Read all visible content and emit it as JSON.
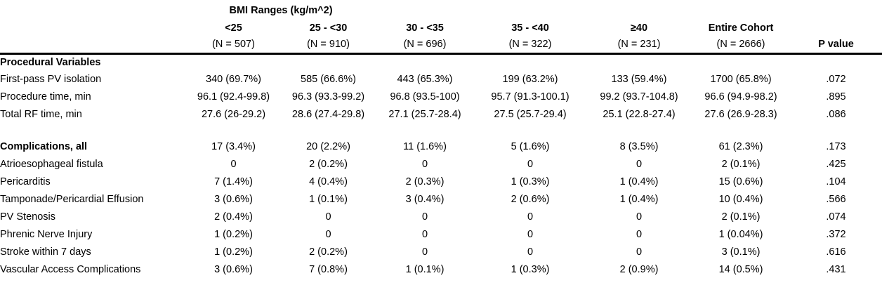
{
  "title": "BMI Ranges (kg/m^2)",
  "columns": [
    {
      "range": "<25",
      "n": "(N = 507)"
    },
    {
      "range": "25 - <30",
      "n": "(N = 910)"
    },
    {
      "range": "30 - <35",
      "n": "(N = 696)"
    },
    {
      "range": "35 - <40",
      "n": "(N = 322)"
    },
    {
      "range": "≥40",
      "n": "(N = 231)"
    },
    {
      "range": "Entire Cohort",
      "n": "(N = 2666)"
    }
  ],
  "p_header": "P value",
  "rows": [
    {
      "label": "Procedural Variables",
      "bold": true,
      "spacer": false,
      "values": [
        "",
        "",
        "",
        "",
        "",
        ""
      ],
      "p": ""
    },
    {
      "label": "First-pass PV isolation",
      "bold": false,
      "spacer": false,
      "values": [
        "340 (69.7%)",
        "585 (66.6%)",
        "443 (65.3%)",
        "199 (63.2%)",
        "133 (59.4%)",
        "1700 (65.8%)"
      ],
      "p": ".072"
    },
    {
      "label": "Procedure time, min",
      "bold": false,
      "spacer": false,
      "values": [
        "96.1 (92.4-99.8)",
        "96.3 (93.3-99.2)",
        "96.8 (93.5-100)",
        "95.7 (91.3-100.1)",
        "99.2 (93.7-104.8)",
        "96.6 (94.9-98.2)"
      ],
      "p": ".895"
    },
    {
      "label": "Total RF time, min",
      "bold": false,
      "spacer": false,
      "values": [
        "27.6 (26-29.2)",
        "28.6 (27.4-29.8)",
        "27.1 (25.7-28.4)",
        "27.5 (25.7-29.4)",
        "25.1 (22.8-27.4)",
        "27.6 (26.9-28.3)"
      ],
      "p": ".086"
    },
    {
      "label": "",
      "bold": false,
      "spacer": true,
      "values": [
        "",
        "",
        "",
        "",
        "",
        ""
      ],
      "p": ""
    },
    {
      "label": "Complications, all",
      "bold": true,
      "spacer": false,
      "values": [
        "17 (3.4%)",
        "20 (2.2%)",
        "11 (1.6%)",
        "5 (1.6%)",
        "8 (3.5%)",
        "61 (2.3%)"
      ],
      "p": ".173"
    },
    {
      "label": "Atrioesophageal fistula",
      "bold": false,
      "spacer": false,
      "values": [
        "0",
        "2 (0.2%)",
        "0",
        "0",
        "0",
        "2 (0.1%)"
      ],
      "p": ".425"
    },
    {
      "label": "Pericarditis",
      "bold": false,
      "spacer": false,
      "values": [
        "7 (1.4%)",
        "4 (0.4%)",
        "2 (0.3%)",
        "1 (0.3%)",
        "1 (0.4%)",
        "15 (0.6%)"
      ],
      "p": ".104"
    },
    {
      "label": "Tamponade/Pericardial Effusion",
      "bold": false,
      "spacer": false,
      "values": [
        "3 (0.6%)",
        "1 (0.1%)",
        "3 (0.4%)",
        "2 (0.6%)",
        "1 (0.4%)",
        "10 (0.4%)"
      ],
      "p": ".566"
    },
    {
      "label": "PV Stenosis",
      "bold": false,
      "spacer": false,
      "values": [
        "2 (0.4%)",
        "0",
        "0",
        "0",
        "0",
        "2 (0.1%)"
      ],
      "p": ".074"
    },
    {
      "label": "Phrenic Nerve Injury",
      "bold": false,
      "spacer": false,
      "values": [
        "1 (0.2%)",
        "0",
        "0",
        "0",
        "0",
        "1 (0.04%)"
      ],
      "p": ".372"
    },
    {
      "label": "Stroke within 7 days",
      "bold": false,
      "spacer": false,
      "values": [
        "1 (0.2%)",
        "2 (0.2%)",
        "0",
        "0",
        "0",
        "3 (0.1%)"
      ],
      "p": ".616"
    },
    {
      "label": "Vascular Access Complications",
      "bold": false,
      "spacer": false,
      "values": [
        "3 (0.6%)",
        "7 (0.8%)",
        "1 (0.1%)",
        "1 (0.3%)",
        "2 (0.9%)",
        "14 (0.5%)"
      ],
      "p": ".431"
    }
  ]
}
